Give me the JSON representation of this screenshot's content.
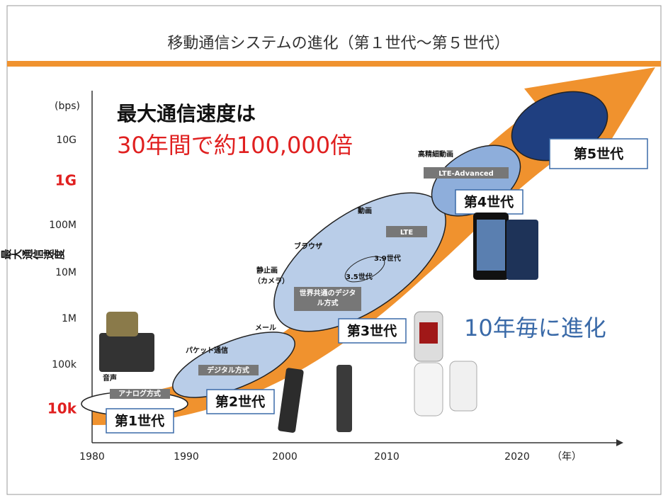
{
  "title": "移動通信システムの進化（第１世代～第５世代）",
  "headline": {
    "line1": "最大通信速度は",
    "line2": "30年間で約100,000倍"
  },
  "y_axis": {
    "label": "最大通信速度",
    "unit": "(bps)",
    "ticks": [
      "10G",
      "1G",
      "100M",
      "10M",
      "1M",
      "100k",
      "10k"
    ]
  },
  "x_axis": {
    "ticks": [
      "1980",
      "1990",
      "2000",
      "2010",
      "2020"
    ],
    "unit": "（年）"
  },
  "generations": [
    {
      "label": "第1世代",
      "tag": "アナログ方式",
      "note": "音声"
    },
    {
      "label": "第2世代",
      "tag": "デジタル方式",
      "note": "パケット通信"
    },
    {
      "label": "第3世代",
      "tag": "世界共通のデジタル方式",
      "notes": [
        "メール",
        "静止画",
        "（カメラ）",
        "ブラウザ",
        "動画",
        "3.5世代",
        "3.9世代"
      ],
      "tag2": "LTE"
    },
    {
      "label": "第4世代",
      "tag": "LTE-Advanced",
      "note": "高精細動画"
    },
    {
      "label": "第5世代"
    }
  ],
  "slogan": "10年毎に進化"
}
